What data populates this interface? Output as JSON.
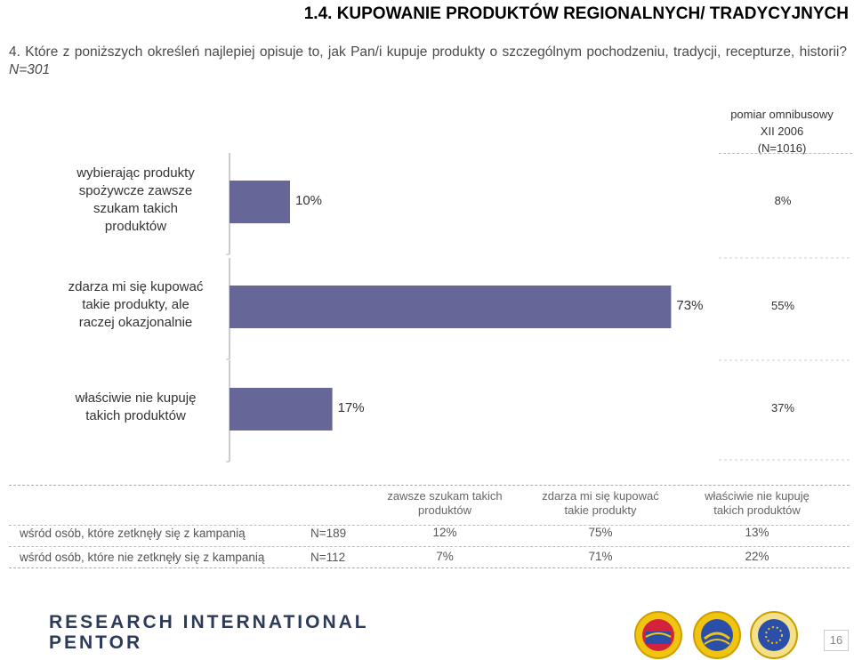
{
  "header": {
    "title": "1.4. KUPOWANIE PRODUKTÓW REGIONALNYCH/ TRADYCYJNYCH",
    "question": "4. Które z poniższych określeń najlepiej opisuje to, jak Pan/i kupuje produkty o szczególnym pochodzeniu, tradycji, recepturze, historii?",
    "sample": "N=301"
  },
  "omnibus": {
    "line1": "pomiar omnibusowy",
    "line2": "XII 2006",
    "line3": "(N=1016)"
  },
  "chart_data": {
    "type": "bar",
    "orientation": "horizontal",
    "categories": [
      "wybierając produkty spożywcze zawsze szukam takich produktów",
      "zdarza mi się kupować takie produkty, ale raczej okazjonalnie",
      "właściwie nie kupuję takich produktów"
    ],
    "category_lines": [
      [
        "wybierając produkty",
        "spożywcze zawsze",
        "szukam takich",
        "produktów"
      ],
      [
        "zdarza mi się kupować",
        "takie produkty, ale",
        "raczej okazjonalnie"
      ],
      [
        "właściwie nie kupuję",
        "takich produktów"
      ]
    ],
    "values": [
      10,
      73,
      17
    ],
    "value_labels": [
      "10%",
      "73%",
      "17%"
    ],
    "comparison_values": [
      8,
      55,
      37
    ],
    "comparison_labels": [
      "8%",
      "55%",
      "37%"
    ],
    "bar_color": "#666699",
    "xlim": [
      0,
      100
    ]
  },
  "table": {
    "columns": [
      "zawsze szukam takich produktów",
      "zdarza mi się kupować takie produkty",
      "właściwie nie kupuję takich produktów"
    ],
    "column_lines": [
      [
        "zawsze szukam takich",
        "produktów"
      ],
      [
        "zdarza mi się kupować",
        "takie produkty"
      ],
      [
        "właściwie nie kupuję",
        "takich produktów"
      ]
    ],
    "rows": [
      {
        "label": "wśród osób, które zetknęły się z kampanią",
        "n": "N=189",
        "values": [
          "12%",
          "75%",
          "13%"
        ]
      },
      {
        "label": "wśród osób, które nie zetknęły się z kampanią",
        "n": "N=112",
        "values": [
          "7%",
          "71%",
          "22%"
        ]
      }
    ]
  },
  "footer": {
    "logo_line1": "RESEARCH INTERNATIONAL",
    "logo_line2": "PENTOR",
    "page_number": "16"
  }
}
